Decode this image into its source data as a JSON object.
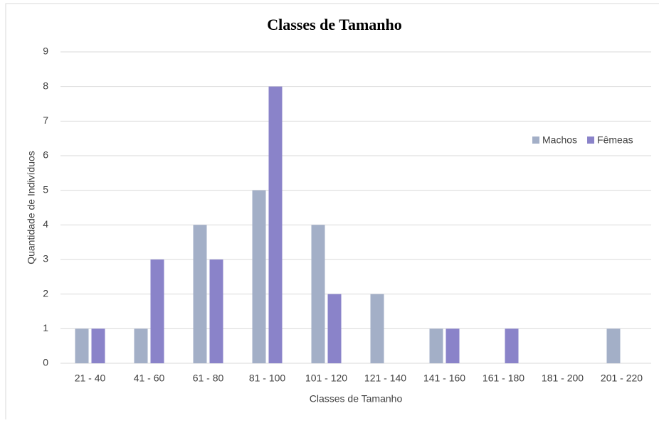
{
  "chart_data": {
    "type": "bar",
    "title": "Classes de Tamanho",
    "x_label": "Classes de Tamanho",
    "y_label": "Quantidade de Indivíduos",
    "categories": [
      "21 - 40",
      "41 - 60",
      "61 - 80",
      "81 - 100",
      "101 - 120",
      "121 - 140",
      "141 - 160",
      "161 - 180",
      "181 - 200",
      "201 - 220"
    ],
    "series": [
      {
        "name": "Machos",
        "color": "#a3afc7",
        "values": [
          1,
          1,
          4,
          5,
          4,
          2,
          1,
          0,
          0,
          1
        ]
      },
      {
        "name": "Fêmeas",
        "color": "#8a83c9",
        "values": [
          1,
          3,
          3,
          8,
          2,
          0,
          1,
          1,
          0,
          0
        ]
      }
    ],
    "ylim": [
      0,
      9
    ],
    "yticks": [
      0,
      1,
      2,
      3,
      4,
      5,
      6,
      7,
      8,
      9
    ],
    "grid": true,
    "legend": "right"
  }
}
